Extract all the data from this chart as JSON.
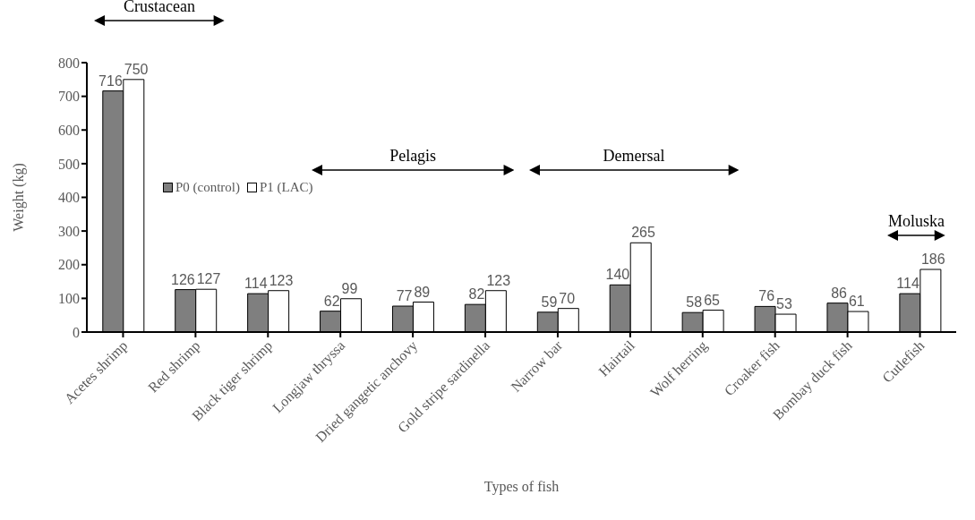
{
  "chart_data": {
    "type": "bar",
    "xlabel": "Types of fish",
    "ylabel": "Weight (kg)",
    "categories": [
      "Acetes shrimp",
      "Red shrimp",
      "Black tiger shrimp",
      "Longjaw thryssa",
      "Dried gangetic anchovy",
      "Gold stripe sardinella",
      "Narrow bar",
      "Hairtail",
      "Wolf herring",
      "Croaker fish",
      "Bombay duck fish",
      "Cutlefish"
    ],
    "series": [
      {
        "name": "P0 (control)",
        "color": "#7f7f7f",
        "values": [
          716,
          126,
          114,
          62,
          77,
          82,
          59,
          140,
          58,
          76,
          86,
          114
        ]
      },
      {
        "name": "P1 (LAC)",
        "color": "#ffffff",
        "values": [
          750,
          127,
          123,
          99,
          89,
          123,
          70,
          265,
          65,
          53,
          61,
          186
        ]
      }
    ],
    "ylim": [
      0,
      800
    ],
    "yticks": [
      0,
      100,
      200,
      300,
      400,
      500,
      600,
      700,
      800
    ],
    "grid": false,
    "legend": "left",
    "data_labels": true,
    "annotations": [
      "Crustacean",
      "Pelagis",
      "Demersal",
      "Moluska"
    ]
  }
}
